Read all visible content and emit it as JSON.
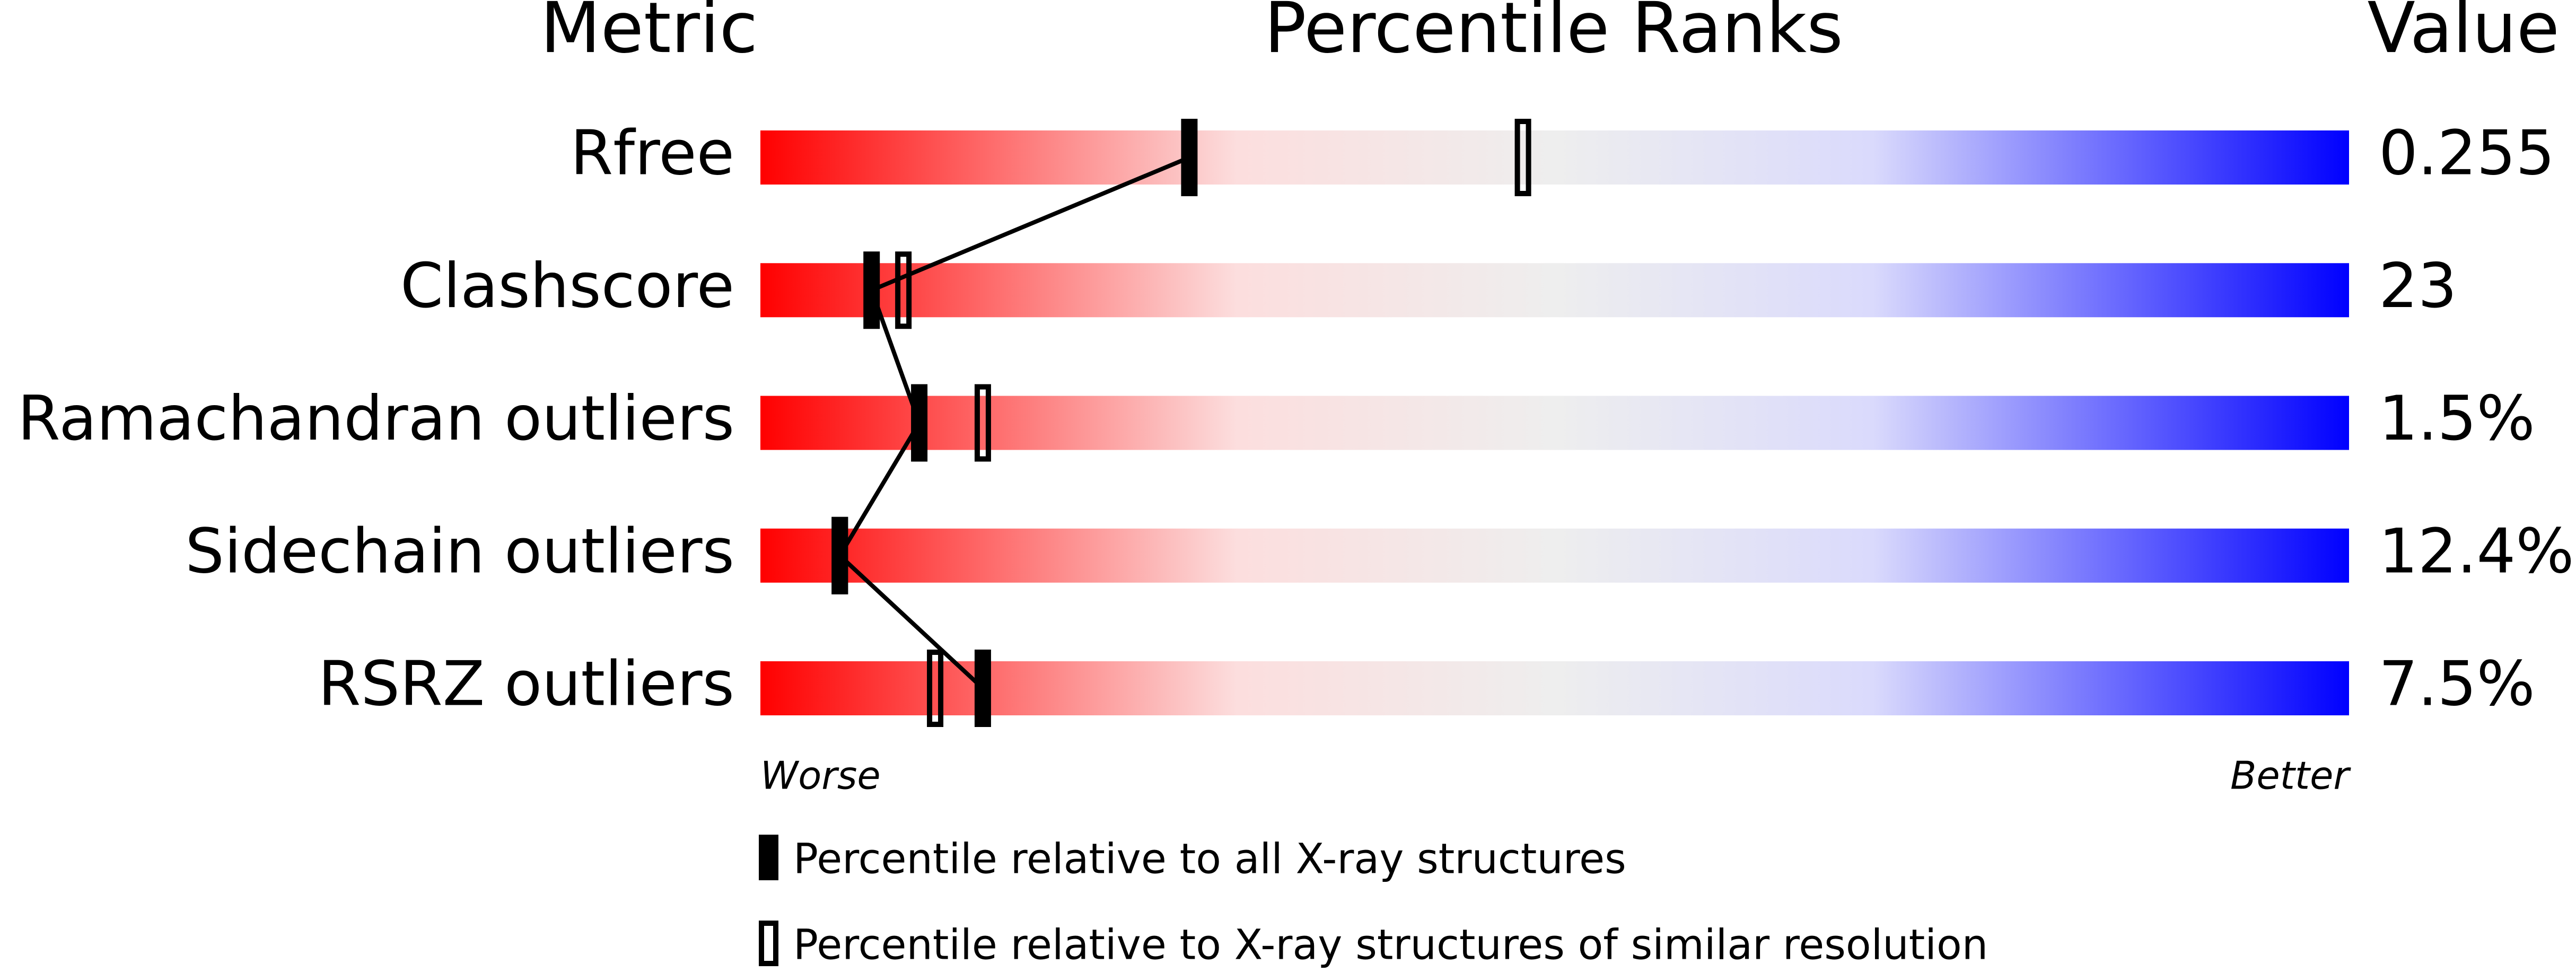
{
  "chart_data": {
    "type": "percentile",
    "header_metric": "Metric",
    "title": "Percentile Ranks",
    "header_value": "Value",
    "categories": [
      "Rfree",
      "Clashscore",
      "Ramachandran outliers",
      "Sidechain outliers",
      "RSRZ outliers"
    ],
    "metric_values": [
      "0.255",
      "23",
      "1.5%",
      "12.4%",
      "7.5%"
    ],
    "series": [
      {
        "name": "Percentile relative to all X-ray structures",
        "style": "filled",
        "color": "#000000",
        "values": [
          27,
          7,
          10,
          5,
          14
        ]
      },
      {
        "name": "Percentile relative to X-ray structures of similar resolution",
        "style": "open",
        "color": "#000000",
        "values": [
          48,
          9,
          14,
          5,
          11
        ]
      }
    ],
    "xlim": [
      0,
      100
    ],
    "worse_label": "Worse",
    "better_label": "Better"
  }
}
